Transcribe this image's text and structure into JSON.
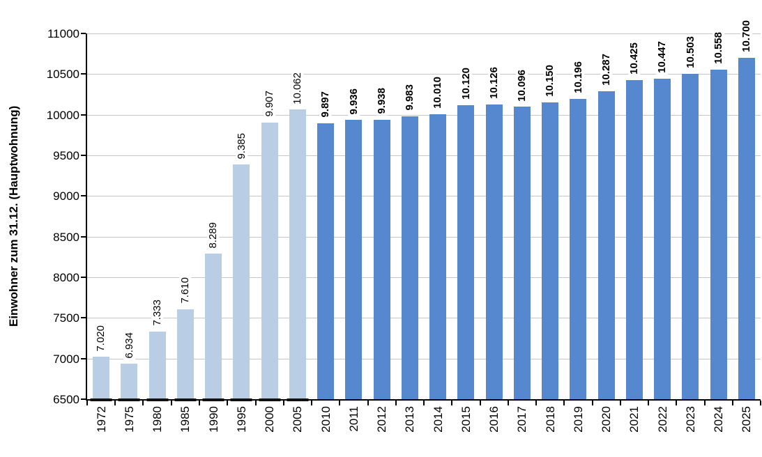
{
  "chart_data": {
    "type": "bar",
    "title": "",
    "xlabel": "",
    "ylabel": "Einwohner zum 31.12. (Hauptwohnung)",
    "ylim": [
      6500,
      11000
    ],
    "ytick_step": 500,
    "yticks": [
      6500,
      7000,
      7500,
      8000,
      8500,
      9000,
      9500,
      10000,
      10500,
      11000
    ],
    "grid": true,
    "legend": "none",
    "colors": {
      "historic_bar": "#B9CDE5",
      "recent_bar": "#5588CE",
      "gridline": "#C6C6C6",
      "axis": "#000000",
      "baseline_dash": "#111111",
      "label_text": "#000000"
    },
    "bars": [
      {
        "year": "1972",
        "value": 7020,
        "label": "7.020",
        "series": "historic"
      },
      {
        "year": "1975",
        "value": 6934,
        "label": "6.934",
        "series": "historic"
      },
      {
        "year": "1980",
        "value": 7333,
        "label": "7.333",
        "series": "historic"
      },
      {
        "year": "1985",
        "value": 7610,
        "label": "7.610",
        "series": "historic"
      },
      {
        "year": "1990",
        "value": 8289,
        "label": "8.289",
        "series": "historic"
      },
      {
        "year": "1995",
        "value": 9385,
        "label": "9.385",
        "series": "historic"
      },
      {
        "year": "2000",
        "value": 9907,
        "label": "9.907",
        "series": "historic"
      },
      {
        "year": "2005",
        "value": 10062,
        "label": "10.062",
        "series": "historic"
      },
      {
        "year": "2010",
        "value": 9897,
        "label": "9.897",
        "series": "recent"
      },
      {
        "year": "2011",
        "value": 9936,
        "label": "9.936",
        "series": "recent"
      },
      {
        "year": "2012",
        "value": 9938,
        "label": "9.938",
        "series": "recent"
      },
      {
        "year": "2013",
        "value": 9983,
        "label": "9.983",
        "series": "recent"
      },
      {
        "year": "2014",
        "value": 10010,
        "label": "10.010",
        "series": "recent"
      },
      {
        "year": "2015",
        "value": 10120,
        "label": "10.120",
        "series": "recent"
      },
      {
        "year": "2016",
        "value": 10126,
        "label": "10.126",
        "series": "recent"
      },
      {
        "year": "2017",
        "value": 10096,
        "label": "10.096",
        "series": "recent"
      },
      {
        "year": "2018",
        "value": 10150,
        "label": "10.150",
        "series": "recent"
      },
      {
        "year": "2019",
        "value": 10196,
        "label": "10.196",
        "series": "recent"
      },
      {
        "year": "2020",
        "value": 10287,
        "label": "10.287",
        "series": "recent"
      },
      {
        "year": "2021",
        "value": 10425,
        "label": "10.425",
        "series": "recent"
      },
      {
        "year": "2022",
        "value": 10447,
        "label": "10.447",
        "series": "recent"
      },
      {
        "year": "2023",
        "value": 10503,
        "label": "10.503",
        "series": "recent"
      },
      {
        "year": "2024",
        "value": 10558,
        "label": "10.558",
        "series": "recent"
      },
      {
        "year": "2025",
        "value": 10700,
        "label": "10.700",
        "series": "recent"
      }
    ]
  }
}
